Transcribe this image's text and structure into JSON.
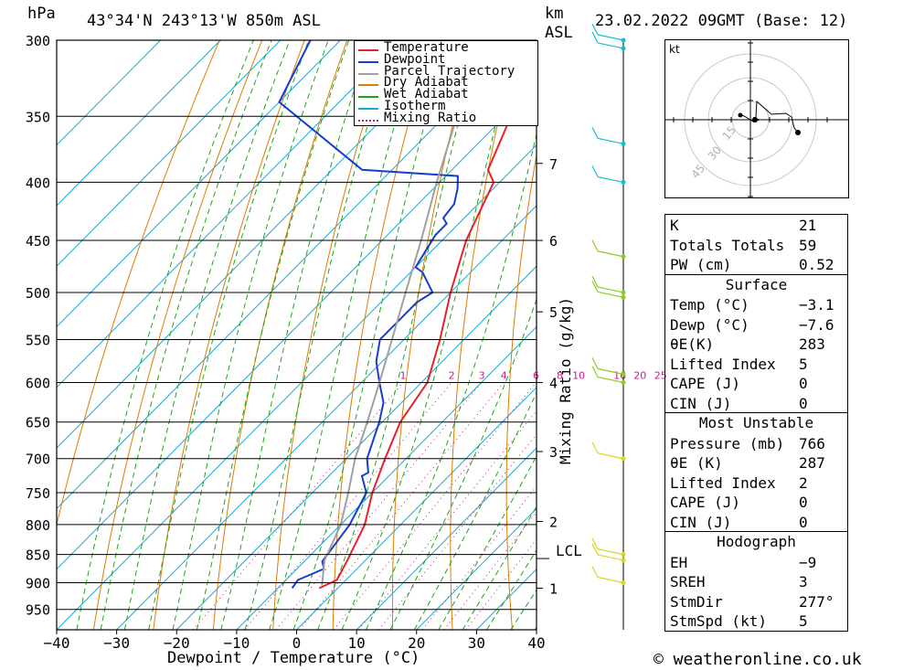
{
  "header": {
    "location": "43°34'N 243°13'W 850m ASL",
    "datetime": "23.02.2022 09GMT (Base: 12)",
    "unit_left": "hPa",
    "unit_right_km": "km",
    "unit_right_asl": "ASL"
  },
  "axes": {
    "xlabel": "Dewpoint / Temperature (°C)",
    "mixing_ratio_label": "Mixing Ratio (g/kg)",
    "lcl_label": "LCL"
  },
  "legend": [
    {
      "label": "Temperature",
      "color": "#e8202a",
      "style": "solid"
    },
    {
      "label": "Dewpoint",
      "color": "#1a3ccc",
      "style": "solid"
    },
    {
      "label": "Parcel Trajectory",
      "color": "#a0a0a0",
      "style": "solid"
    },
    {
      "label": "Dry Adiabat",
      "color": "#e07a00",
      "style": "solid"
    },
    {
      "label": "Wet Adiabat",
      "color": "#1aa81a",
      "style": "solid"
    },
    {
      "label": "Isotherm",
      "color": "#17a8d8",
      "style": "solid"
    },
    {
      "label": "Mixing Ratio",
      "color": "#cc1a8c",
      "style": "dotted"
    }
  ],
  "hodograph": {
    "unit": "kt",
    "ring_labels": [
      "15",
      "30",
      "45"
    ]
  },
  "indices": {
    "top": [
      {
        "k": "K",
        "v": "21"
      },
      {
        "k": "Totals Totals",
        "v": "59"
      },
      {
        "k": "PW (cm)",
        "v": "0.52"
      }
    ],
    "surface": {
      "title": "Surface",
      "rows": [
        {
          "k": "Temp (°C)",
          "v": "-3.1"
        },
        {
          "k": "Dewp (°C)",
          "v": "-7.6"
        },
        {
          "k": "θE(K)",
          "v": "283"
        },
        {
          "k": "Lifted Index",
          "v": "5"
        },
        {
          "k": "CAPE (J)",
          "v": "0"
        },
        {
          "k": "CIN (J)",
          "v": "0"
        }
      ]
    },
    "most_unstable": {
      "title": "Most Unstable",
      "rows": [
        {
          "k": "Pressure (mb)",
          "v": "766"
        },
        {
          "k": "θE (K)",
          "v": "287"
        },
        {
          "k": "Lifted Index",
          "v": "2"
        },
        {
          "k": "CAPE (J)",
          "v": "0"
        },
        {
          "k": "CIN (J)",
          "v": "0"
        }
      ]
    },
    "hodograph": {
      "title": "Hodograph",
      "rows": [
        {
          "k": "EH",
          "v": "-9"
        },
        {
          "k": "SREH",
          "v": "3"
        },
        {
          "k": "StmDir",
          "v": "277°"
        },
        {
          "k": "StmSpd (kt)",
          "v": "5"
        }
      ]
    }
  },
  "footer": {
    "copyright": "© weatheronline.co.uk"
  },
  "chart_data": {
    "type": "line",
    "title": "43°34'N 243°13'W 850m ASL",
    "xlabel": "Dewpoint / Temperature (°C)",
    "ylabel": "hPa",
    "x_ticks": [
      -40,
      -30,
      -20,
      -10,
      0,
      10,
      20,
      30,
      40
    ],
    "pressure_levels": [
      300,
      350,
      400,
      450,
      500,
      550,
      600,
      650,
      700,
      750,
      800,
      850,
      900,
      950
    ],
    "xlim": [
      -40,
      40
    ],
    "ylim_hpa": [
      300,
      990
    ],
    "height_km_ticks": [
      {
        "km": "1",
        "p": 910
      },
      {
        "km": "2",
        "p": 795
      },
      {
        "km": "3",
        "p": 690
      },
      {
        "km": "4",
        "p": 600
      },
      {
        "km": "5",
        "p": 520
      },
      {
        "km": "6",
        "p": 450
      },
      {
        "km": "7",
        "p": 385
      }
    ],
    "lcl_hpa": 857,
    "mixing_ratio_labels": [
      "1",
      "2",
      "3",
      "4",
      "6",
      "8",
      "10",
      "16",
      "20",
      "25"
    ],
    "mixing_ratio_values": [
      1,
      2,
      3,
      4,
      6,
      8,
      10,
      16,
      20,
      25
    ],
    "series": [
      {
        "name": "Temperature",
        "points": [
          [
            -3.1,
            910
          ],
          [
            -1.5,
            895
          ],
          [
            -3,
            860
          ],
          [
            -6,
            800
          ],
          [
            -10,
            750
          ],
          [
            -13.5,
            700
          ],
          [
            -17,
            650
          ],
          [
            -19,
            600
          ],
          [
            -24,
            550
          ],
          [
            -30,
            500
          ],
          [
            -36,
            450
          ],
          [
            -41,
            400
          ],
          [
            -44,
            390
          ],
          [
            -49,
            350
          ],
          [
            -54,
            300
          ]
        ]
      },
      {
        "name": "Dewpoint",
        "points": [
          [
            -7.6,
            910
          ],
          [
            -8,
            895
          ],
          [
            -5.5,
            875
          ],
          [
            -7,
            862
          ],
          [
            -8.5,
            800
          ],
          [
            -11,
            750
          ],
          [
            -14.5,
            725
          ],
          [
            -14,
            720
          ],
          [
            -16.5,
            700
          ],
          [
            -20.5,
            650
          ],
          [
            -23,
            625
          ],
          [
            -27,
            600
          ],
          [
            -31,
            575
          ],
          [
            -34,
            550
          ],
          [
            -34,
            510
          ],
          [
            -33,
            500
          ],
          [
            -38,
            480
          ],
          [
            -40,
            475
          ],
          [
            -41,
            460
          ],
          [
            -42,
            445
          ],
          [
            -42,
            435
          ],
          [
            -43.5,
            430
          ],
          [
            -44,
            418
          ],
          [
            -46,
            405
          ],
          [
            -48,
            395
          ],
          [
            -65,
            390
          ],
          [
            -90,
            340
          ],
          [
            -95,
            300
          ]
        ]
      },
      {
        "name": "Parcel Trajectory",
        "points": [
          [
            -3.1,
            905
          ],
          [
            -6.8,
            860
          ],
          [
            -10,
            800
          ],
          [
            -14,
            750
          ],
          [
            -18.5,
            700
          ],
          [
            -22.5,
            650
          ],
          [
            -27,
            600
          ],
          [
            -32,
            550
          ],
          [
            -37.5,
            500
          ],
          [
            -43.5,
            450
          ],
          [
            -50.5,
            400
          ],
          [
            -58,
            350
          ],
          [
            -66,
            300
          ]
        ]
      }
    ],
    "wind_barbs_hpa": [
      300,
      305,
      370,
      400,
      465,
      500,
      505,
      590,
      600,
      700,
      850,
      860,
      900
    ]
  }
}
